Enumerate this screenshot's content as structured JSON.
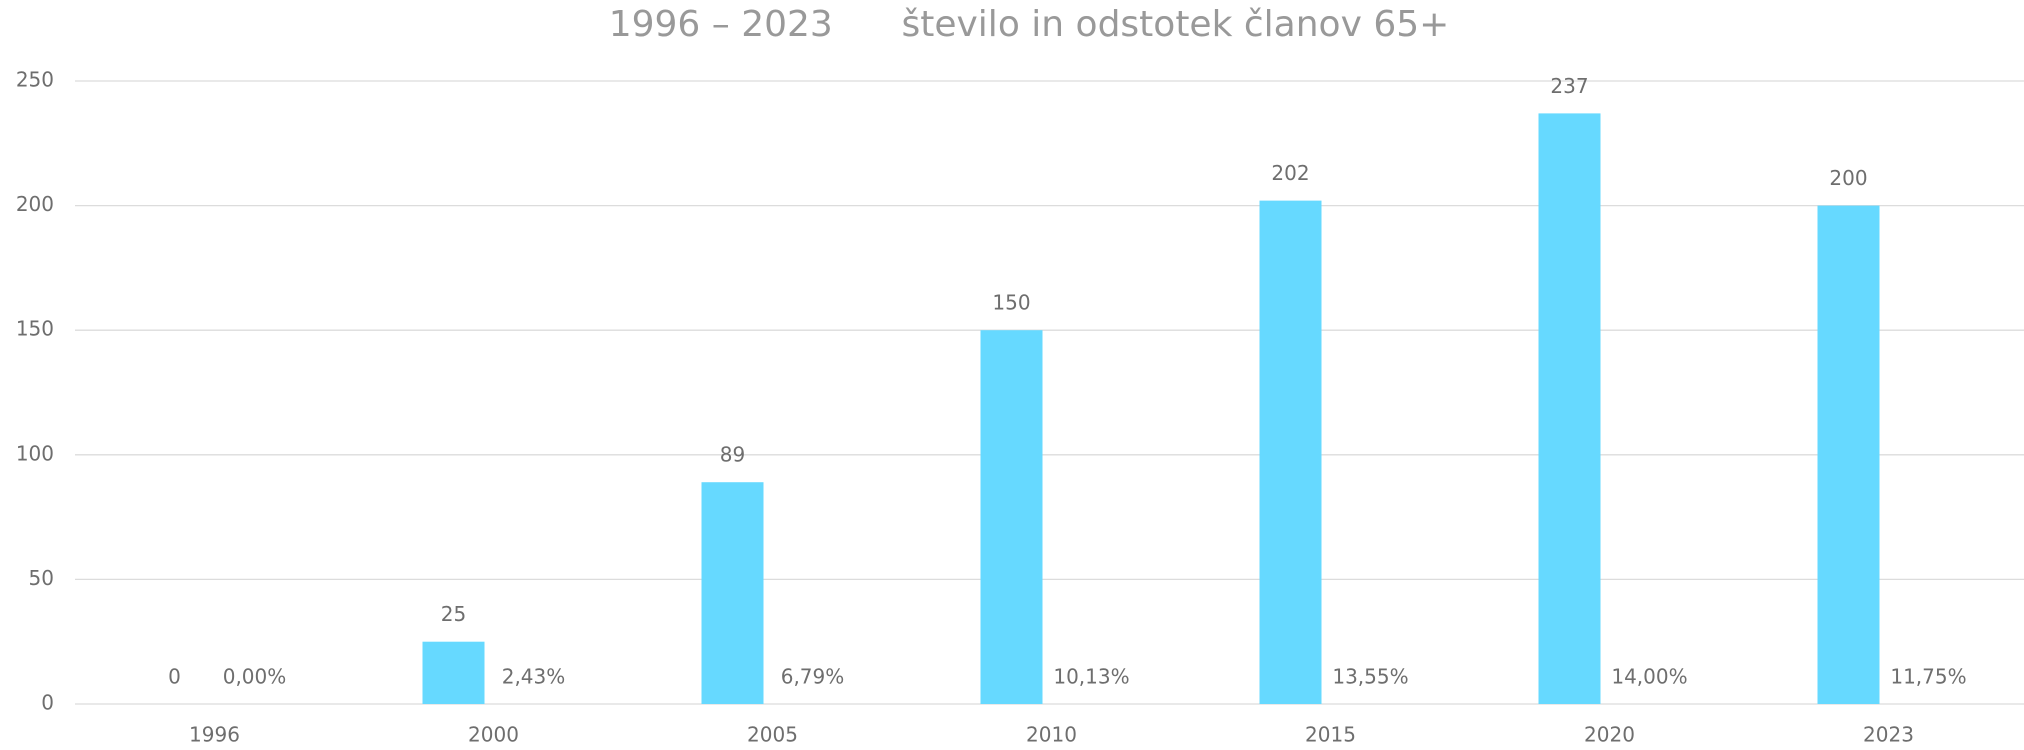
{
  "chart_data": {
    "type": "bar",
    "title": "1996 – 2023      število in odstotek članov 65+",
    "categories": [
      "1996",
      "2000",
      "2005",
      "2010",
      "2015",
      "2020",
      "2023"
    ],
    "series": [
      {
        "color": "#66d9ff",
        "values": [
          0,
          25,
          89,
          150,
          202,
          237,
          200
        ]
      },
      {
        "color": "transparent",
        "values": [
          0,
          2.43,
          6.79,
          10.13,
          13.55,
          14,
          11.75
        ],
        "value_labels": [
          "0,00%",
          "2,43%",
          "6,79%",
          "10,13%",
          "13,55%",
          "14,00%",
          "11,75%"
        ]
      }
    ],
    "ylim": [
      0,
      250
    ],
    "yticks": [
      0,
      50,
      100,
      150,
      200,
      250
    ],
    "grid": true
  }
}
